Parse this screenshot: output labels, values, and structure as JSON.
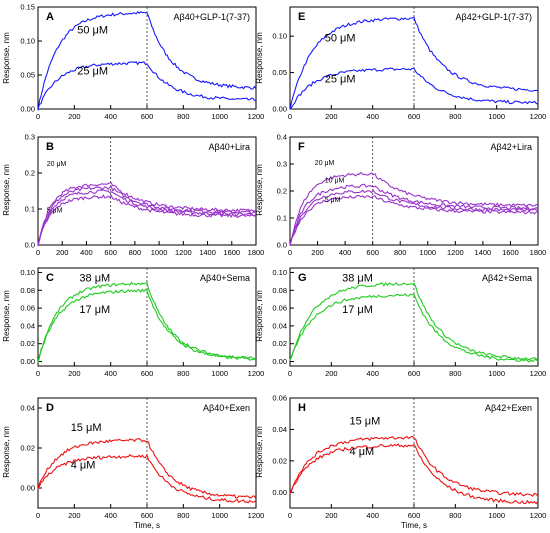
{
  "figure": {
    "ylabel": "Response, nm",
    "xlabel": "Time, s"
  },
  "chart_data": [
    {
      "type": "line",
      "letter": "A",
      "title": "Aβ40+GLP-1(7-37)",
      "xlim": [
        0,
        1200
      ],
      "ylim": [
        0,
        0.15
      ],
      "xticks": [
        0,
        200,
        400,
        600,
        800,
        1000,
        1200
      ],
      "yticks": [
        0,
        0.05,
        0.1,
        0.15
      ],
      "yticklabels": [
        "0.00",
        "0.05",
        "0.10",
        "0.15"
      ],
      "vline": 600,
      "color": "#1a1aff",
      "series": [
        {
          "name": "",
          "label": "50 μM",
          "plateau": 0.142,
          "end": 0.03
        },
        {
          "name": "",
          "label": "25 μM",
          "plateau": 0.068,
          "end": 0.013
        }
      ]
    },
    {
      "type": "line",
      "letter": "E",
      "title": "Aβ42+GLP-1(7-37)",
      "xlim": [
        0,
        1200
      ],
      "ylim": [
        0,
        0.14
      ],
      "xticks": [
        0,
        200,
        400,
        600,
        800,
        1000,
        1200
      ],
      "yticks": [
        0,
        0.05,
        0.1
      ],
      "yticklabels": [
        "0.00",
        "0.05",
        "0.10"
      ],
      "vline": 600,
      "color": "#1a1aff",
      "series": [
        {
          "name": "",
          "label": "50 μM",
          "plateau": 0.125,
          "end": 0.025
        },
        {
          "name": "",
          "label": "25 μM",
          "plateau": 0.055,
          "end": 0.008
        }
      ]
    },
    {
      "type": "line",
      "letter": "B",
      "title": "Aβ40+Lira",
      "xlim": [
        0,
        1800
      ],
      "ylim": [
        0,
        0.3
      ],
      "xticks": [
        0,
        200,
        400,
        600,
        800,
        1000,
        1200,
        1400,
        1600,
        1800
      ],
      "yticks": [
        0,
        0.1,
        0.2,
        0.3
      ],
      "yticklabels": [
        "0.0",
        "0.1",
        "0.2",
        "0.3"
      ],
      "vline": 600,
      "color": "#9933cc",
      "series": [
        {
          "name": "",
          "label": "20 μM",
          "plateau": 0.17,
          "end": 0.095
        },
        {
          "name": "",
          "label": "",
          "plateau": 0.16,
          "end": 0.09
        },
        {
          "name": "",
          "label": "",
          "plateau": 0.15,
          "end": 0.085
        },
        {
          "name": "",
          "label": "5 μM",
          "plateau": 0.135,
          "end": 0.08
        }
      ]
    },
    {
      "type": "line",
      "letter": "F",
      "title": "Aβ42+Lira",
      "xlim": [
        0,
        1800
      ],
      "ylim": [
        0,
        0.4
      ],
      "xticks": [
        0,
        200,
        400,
        600,
        800,
        1000,
        1200,
        1400,
        1600,
        1800
      ],
      "yticks": [
        0,
        0.1,
        0.2,
        0.3,
        0.4
      ],
      "yticklabels": [
        "0.0",
        "0.1",
        "0.2",
        "0.3",
        "0.4"
      ],
      "vline": 600,
      "color": "#9933cc",
      "series": [
        {
          "name": "",
          "label": "20 μM",
          "plateau": 0.265,
          "end": 0.145
        },
        {
          "name": "",
          "label": "10 μM",
          "plateau": 0.22,
          "end": 0.135
        },
        {
          "name": "",
          "label": "",
          "plateau": 0.2,
          "end": 0.128
        },
        {
          "name": "",
          "label": "5 μM",
          "plateau": 0.18,
          "end": 0.12
        }
      ]
    },
    {
      "type": "line",
      "letter": "C",
      "title": "Aβ40+Sema",
      "xlim": [
        0,
        1200
      ],
      "ylim": [
        -0.005,
        0.105
      ],
      "xticks": [
        0,
        200,
        400,
        600,
        800,
        1000,
        1200
      ],
      "yticks": [
        0,
        0.02,
        0.04,
        0.06,
        0.08,
        0.1
      ],
      "yticklabels": [
        "0.00",
        "0.02",
        "0.04",
        "0.06",
        "0.08",
        "0.10"
      ],
      "vline": 600,
      "color": "#22cc22",
      "series": [
        {
          "name": "",
          "label": "38 μM",
          "plateau": 0.088,
          "end": 0.003
        },
        {
          "name": "",
          "label": "17 μM",
          "plateau": 0.08,
          "end": 0.002
        }
      ]
    },
    {
      "type": "line",
      "letter": "G",
      "title": "Aβ42+Sema",
      "xlim": [
        0,
        1200
      ],
      "ylim": [
        -0.005,
        0.105
      ],
      "xticks": [
        0,
        200,
        400,
        600,
        800,
        1000,
        1200
      ],
      "yticks": [
        0,
        0.02,
        0.04,
        0.06,
        0.08,
        0.1
      ],
      "yticklabels": [
        "0.00",
        "0.02",
        "0.04",
        "0.06",
        "0.08",
        "0.10"
      ],
      "vline": 600,
      "color": "#22cc22",
      "series": [
        {
          "name": "",
          "label": "38 μM",
          "plateau": 0.088,
          "end": 0.002
        },
        {
          "name": "",
          "label": "17 μM",
          "plateau": 0.075,
          "end": 0.0
        }
      ]
    },
    {
      "type": "line",
      "letter": "D",
      "title": "Aβ40+Exen",
      "xlim": [
        0,
        1200
      ],
      "ylim": [
        -0.01,
        0.045
      ],
      "xticks": [
        0,
        200,
        400,
        600,
        800,
        1000,
        1200
      ],
      "yticks": [
        0,
        0.02,
        0.04
      ],
      "yticklabels": [
        "0.00",
        "0.02",
        "0.04"
      ],
      "vline": 600,
      "color": "#ee1111",
      "series": [
        {
          "name": "",
          "label": "15 μM",
          "plateau": 0.024,
          "end": -0.005
        },
        {
          "name": "",
          "label": "4 μM",
          "plateau": 0.016,
          "end": -0.007
        }
      ]
    },
    {
      "type": "line",
      "letter": "H",
      "title": "Aβ42+Exen",
      "xlim": [
        0,
        1200
      ],
      "ylim": [
        -0.01,
        0.06
      ],
      "xticks": [
        0,
        200,
        400,
        600,
        800,
        1000,
        1200
      ],
      "yticks": [
        0,
        0.02,
        0.04,
        0.06
      ],
      "yticklabels": [
        "0.00",
        "0.02",
        "0.04",
        "0.06"
      ],
      "vline": 600,
      "color": "#ee1111",
      "series": [
        {
          "name": "",
          "label": "15 μM",
          "plateau": 0.035,
          "end": -0.002
        },
        {
          "name": "",
          "label": "4 μM",
          "plateau": 0.03,
          "end": -0.007
        }
      ]
    }
  ]
}
